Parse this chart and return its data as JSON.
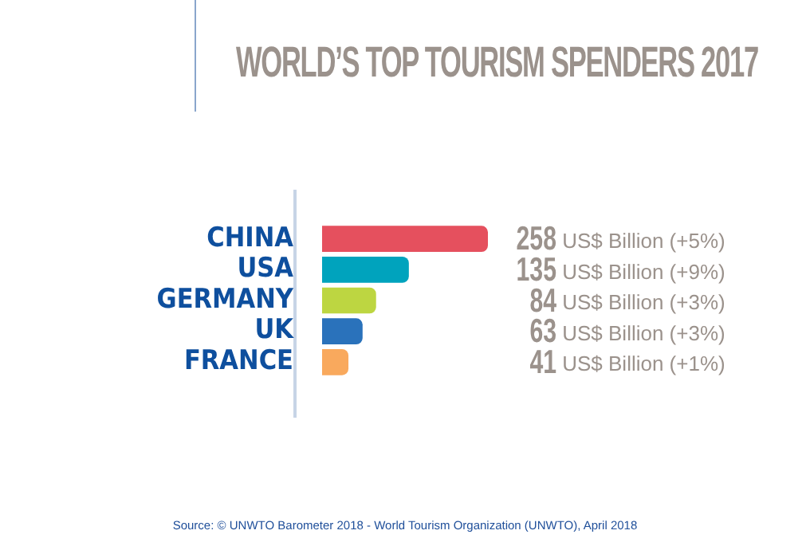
{
  "chart_data": {
    "type": "bar",
    "orientation": "horizontal",
    "title": "WORLD’S TOP TOURISM SPENDERS 2017",
    "categories": [
      "CHINA",
      "USA",
      "GERMANY",
      "UK",
      "FRANCE"
    ],
    "values": [
      258,
      135,
      84,
      63,
      41
    ],
    "colors": [
      "#e5505e",
      "#00a3bd",
      "#bdd641",
      "#2a72bb",
      "#f9a95d"
    ],
    "value_labels": [
      "258 US$ Billion (+5%)",
      "135 US$ Billion (+9%)",
      "84 US$ Billion (+3%)",
      "63 US$ Billion (+3%)",
      "41 US$ Billion (+1%)"
    ],
    "grid": false,
    "legend": false,
    "annotations": [
      "Source: © UNWTO Barometer 2018 - World Tourism Organization (UNWTO), April 2018"
    ]
  }
}
